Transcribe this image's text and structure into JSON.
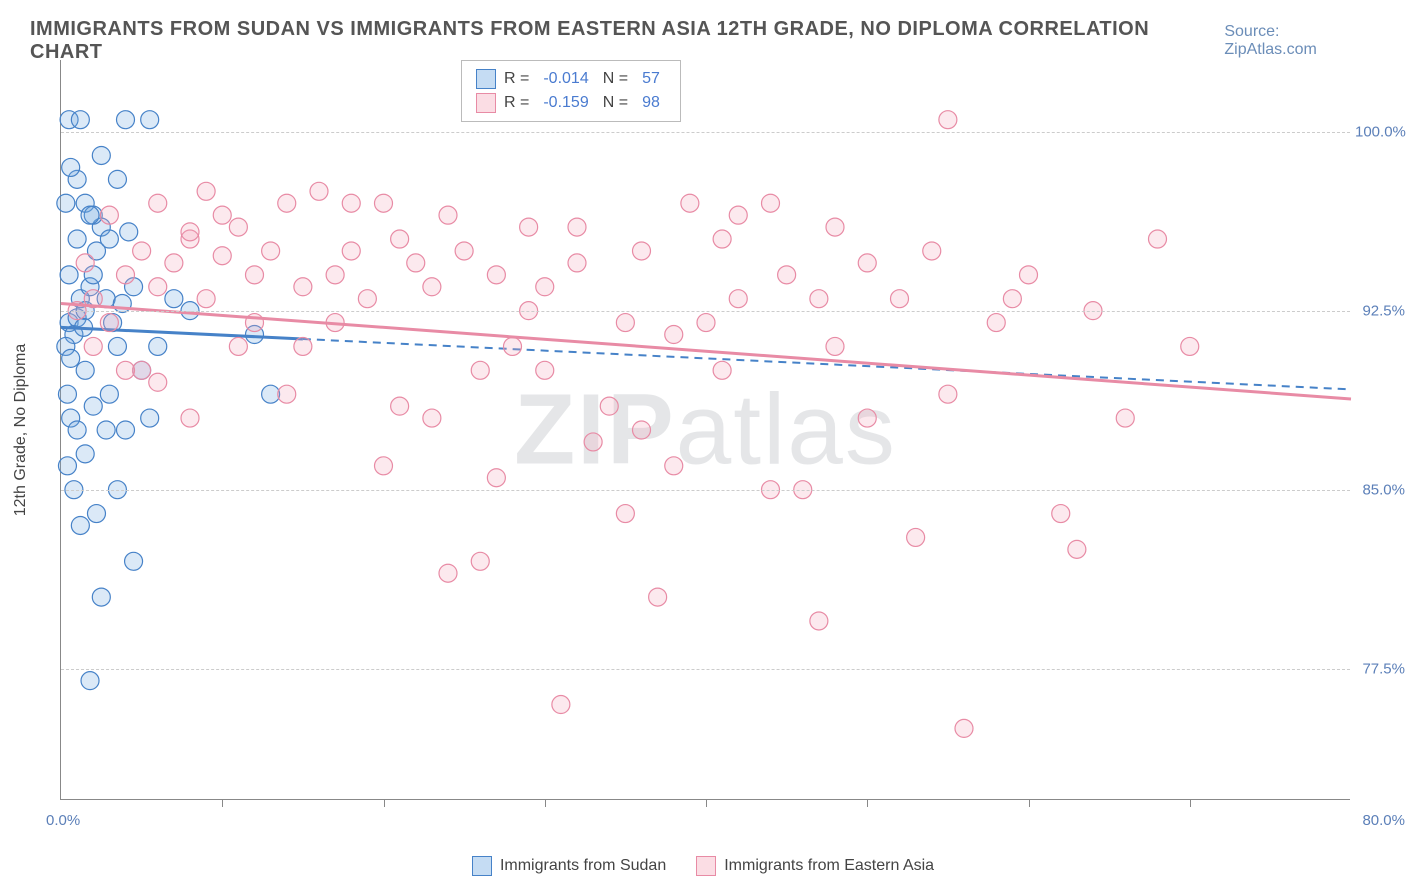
{
  "title": "IMMIGRANTS FROM SUDAN VS IMMIGRANTS FROM EASTERN ASIA 12TH GRADE, NO DIPLOMA CORRELATION CHART",
  "source": "Source: ZipAtlas.com",
  "watermark_left": "ZIP",
  "watermark_right": "atlas",
  "ylabel": "12th Grade, No Diploma",
  "chart": {
    "type": "scatter",
    "background_color": "#ffffff",
    "grid_color": "#cccccc",
    "xlim": [
      0,
      80
    ],
    "ylim": [
      72,
      103
    ],
    "xtick_positions": [
      10,
      20,
      30,
      40,
      50,
      60,
      70
    ],
    "yticks": [
      77.5,
      85.0,
      92.5,
      100.0
    ],
    "ytick_labels": [
      "77.5%",
      "85.0%",
      "92.5%",
      "100.0%"
    ],
    "xlimit_labels": {
      "left": "0.0%",
      "right": "80.0%"
    },
    "marker_radius": 9,
    "marker_fill_opacity": 0.25,
    "marker_stroke_width": 1.2,
    "line_width": 3
  },
  "series": [
    {
      "name": "Immigrants from Sudan",
      "color": "#6fa8e0",
      "stroke": "#4682c8",
      "R": "-0.014",
      "N": "57",
      "regression": {
        "x1": 0,
        "y1": 91.8,
        "x2": 80,
        "y2": 89.2,
        "solid_until": 15
      },
      "points": [
        [
          0.5,
          92
        ],
        [
          0.8,
          91.5
        ],
        [
          1,
          92.2
        ],
        [
          1.2,
          93
        ],
        [
          1.5,
          92.5
        ],
        [
          0.3,
          91
        ],
        [
          0.6,
          90.5
        ],
        [
          1.8,
          93.5
        ],
        [
          2,
          94
        ],
        [
          2.2,
          95
        ],
        [
          2.5,
          96
        ],
        [
          3,
          95.5
        ],
        [
          3.2,
          92
        ],
        [
          3.5,
          91
        ],
        [
          0.5,
          100.5
        ],
        [
          4,
          100.5
        ],
        [
          5.5,
          100.5
        ],
        [
          1,
          98
        ],
        [
          1.5,
          97
        ],
        [
          2,
          96.5
        ],
        [
          0.4,
          89
        ],
        [
          0.6,
          88
        ],
        [
          1,
          87.5
        ],
        [
          1.5,
          86.5
        ],
        [
          2,
          88.5
        ],
        [
          3,
          89
        ],
        [
          0.8,
          85
        ],
        [
          1.2,
          83.5
        ],
        [
          4,
          87.5
        ],
        [
          5,
          90
        ],
        [
          6,
          91
        ],
        [
          7,
          93
        ],
        [
          8,
          92.5
        ],
        [
          2.5,
          80.5
        ],
        [
          4.5,
          82
        ],
        [
          3.5,
          85
        ],
        [
          1.5,
          90
        ],
        [
          0.5,
          94
        ],
        [
          2.8,
          93
        ],
        [
          1,
          95.5
        ],
        [
          1.8,
          96.5
        ],
        [
          0.3,
          97
        ],
        [
          0.6,
          98.5
        ],
        [
          4.5,
          93.5
        ],
        [
          5.5,
          88
        ],
        [
          12,
          91.5
        ],
        [
          13,
          89
        ],
        [
          0.4,
          86
        ],
        [
          1.8,
          77
        ],
        [
          2.2,
          84
        ],
        [
          3.8,
          92.8
        ],
        [
          2.5,
          99
        ],
        [
          3.5,
          98
        ],
        [
          1.2,
          100.5
        ],
        [
          4.2,
          95.8
        ],
        [
          2.8,
          87.5
        ],
        [
          1.4,
          91.8
        ]
      ]
    },
    {
      "name": "Immigrants from Eastern Asia",
      "color": "#f5a9bc",
      "stroke": "#e88ba5",
      "R": "-0.159",
      "N": "98",
      "regression": {
        "x1": 0,
        "y1": 92.8,
        "x2": 80,
        "y2": 88.8,
        "solid_until": 80
      },
      "points": [
        [
          1,
          92.5
        ],
        [
          2,
          93
        ],
        [
          3,
          92
        ],
        [
          4,
          94
        ],
        [
          5,
          95
        ],
        [
          6,
          93.5
        ],
        [
          7,
          94.5
        ],
        [
          8,
          95.5
        ],
        [
          9,
          93
        ],
        [
          10,
          94.8
        ],
        [
          11,
          96
        ],
        [
          12,
          94
        ],
        [
          13,
          95
        ],
        [
          14,
          97
        ],
        [
          15,
          93.5
        ],
        [
          16,
          97.5
        ],
        [
          17,
          94
        ],
        [
          18,
          95
        ],
        [
          19,
          93
        ],
        [
          20,
          97
        ],
        [
          21,
          95.5
        ],
        [
          22,
          94.5
        ],
        [
          23,
          88
        ],
        [
          24,
          96.5
        ],
        [
          25,
          95
        ],
        [
          26,
          82
        ],
        [
          27,
          94
        ],
        [
          28,
          91
        ],
        [
          29,
          96
        ],
        [
          30,
          90
        ],
        [
          31,
          76
        ],
        [
          32,
          94.5
        ],
        [
          33,
          87
        ],
        [
          34,
          88.5
        ],
        [
          35,
          84
        ],
        [
          36,
          95
        ],
        [
          37,
          80.5
        ],
        [
          38,
          91.5
        ],
        [
          39,
          97
        ],
        [
          40,
          92
        ],
        [
          41,
          95.5
        ],
        [
          42,
          93
        ],
        [
          44,
          97
        ],
        [
          45,
          94
        ],
        [
          46,
          85
        ],
        [
          47,
          79.5
        ],
        [
          48,
          91
        ],
        [
          50,
          94.5
        ],
        [
          52,
          93
        ],
        [
          53,
          83
        ],
        [
          54,
          95
        ],
        [
          55,
          89
        ],
        [
          56,
          75
        ],
        [
          58,
          92
        ],
        [
          60,
          94
        ],
        [
          62,
          84
        ],
        [
          63,
          82.5
        ],
        [
          64,
          92.5
        ],
        [
          66,
          88
        ],
        [
          68,
          95.5
        ],
        [
          70,
          91
        ],
        [
          55,
          100.5
        ],
        [
          59,
          93
        ],
        [
          5,
          90
        ],
        [
          8,
          88
        ],
        [
          11,
          91
        ],
        [
          14,
          89
        ],
        [
          17,
          92
        ],
        [
          20,
          86
        ],
        [
          23,
          93.5
        ],
        [
          26,
          90
        ],
        [
          29,
          92.5
        ],
        [
          32,
          96
        ],
        [
          35,
          92
        ],
        [
          38,
          86
        ],
        [
          41,
          90
        ],
        [
          44,
          85
        ],
        [
          47,
          93
        ],
        [
          50,
          88
        ],
        [
          3,
          96.5
        ],
        [
          6,
          97
        ],
        [
          9,
          97.5
        ],
        [
          12,
          92
        ],
        [
          15,
          91
        ],
        [
          18,
          97
        ],
        [
          21,
          88.5
        ],
        [
          24,
          81.5
        ],
        [
          27,
          85.5
        ],
        [
          2,
          91
        ],
        [
          4,
          90
        ],
        [
          6,
          89.5
        ],
        [
          8,
          95.8
        ],
        [
          10,
          96.5
        ],
        [
          1.5,
          94.5
        ],
        [
          48,
          96
        ],
        [
          42,
          96.5
        ],
        [
          36,
          87.5
        ],
        [
          30,
          93.5
        ]
      ]
    }
  ],
  "legend": {
    "R_label": "R =",
    "N_label": "N ="
  }
}
